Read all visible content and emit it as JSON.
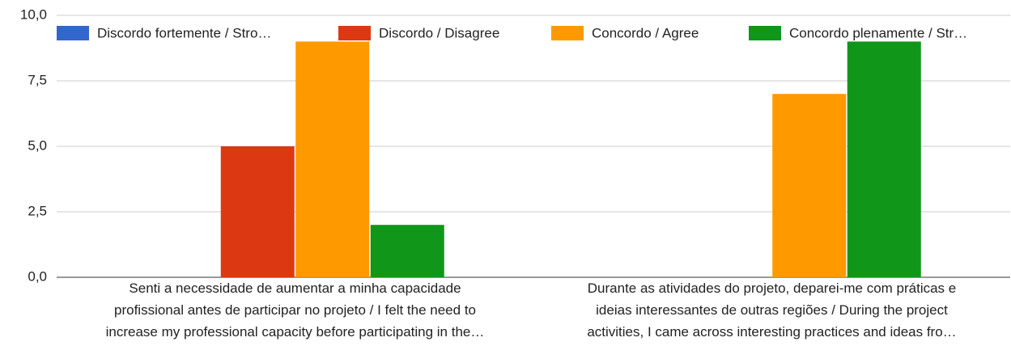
{
  "chart_data": {
    "type": "bar",
    "categories": [
      "Senti a necessidade de aumentar a minha capacidade\nprofissional antes de participar no projeto / I felt the need to\nincrease my professional capacity before participating in the…",
      "Durante as atividades do projeto, deparei-me com práticas e\nideias interessantes de outras regiões / During the project\nactivities, I came across interesting practices and ideas fro…"
    ],
    "series": [
      {
        "name": "Discordo fortemente / Stro…",
        "color": "#3366cc",
        "values": [
          0,
          0
        ]
      },
      {
        "name": "Discordo / Disagree",
        "color": "#dc3912",
        "values": [
          5,
          0
        ]
      },
      {
        "name": "Concordo / Agree",
        "color": "#ff9900",
        "values": [
          9,
          7
        ]
      },
      {
        "name": "Concordo plenamente / Str…",
        "color": "#109618",
        "values": [
          2,
          9
        ]
      }
    ],
    "ylim": [
      0,
      10
    ],
    "yticks": [
      {
        "value": 0,
        "label": "0,0"
      },
      {
        "value": 2.5,
        "label": "2,5"
      },
      {
        "value": 5,
        "label": "5,0"
      },
      {
        "value": 7.5,
        "label": "7,5"
      },
      {
        "value": 10,
        "label": "10,0"
      }
    ],
    "grid": true,
    "legend": "top"
  }
}
